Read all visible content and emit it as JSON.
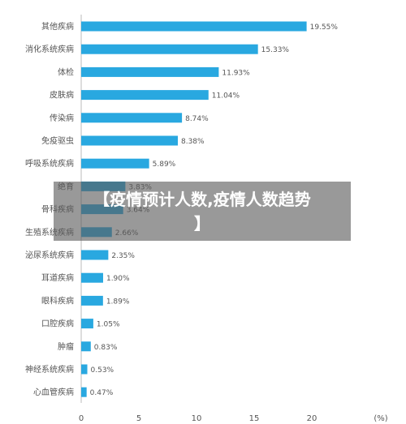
{
  "chart_data": {
    "type": "bar",
    "orientation": "horizontal",
    "categories": [
      "其他疾病",
      "消化系统疾病",
      "体检",
      "皮肤病",
      "传染病",
      "免疫驱虫",
      "呼吸系统疾病",
      "绝育",
      "骨科疾病",
      "生殖系统疾病",
      "泌尿系统疾病",
      "耳道疾病",
      "眼科疾病",
      "口腔疾病",
      "肿瘤",
      "神经系统疾病",
      "心血管疾病"
    ],
    "values": [
      19.55,
      15.33,
      11.93,
      11.04,
      8.74,
      8.38,
      5.89,
      3.83,
      3.64,
      2.66,
      2.35,
      1.9,
      1.89,
      1.05,
      0.83,
      0.53,
      0.47
    ],
    "value_labels": [
      "19.55%",
      "15.33%",
      "11.93%",
      "11.04%",
      "8.74%",
      "8.38%",
      "5.89%",
      "3.83%",
      "3.64%",
      "2.66%",
      "2.35%",
      "1.90%",
      "1.89%",
      "1.05%",
      "0.83%",
      "0.53%",
      "0.47%"
    ],
    "xticks": [
      "0",
      "5",
      "10",
      "15",
      "20"
    ],
    "xunit": "(%)",
    "xlim": [
      0,
      22.5
    ],
    "bar_color": "#29a8e0",
    "grid": false
  },
  "overlay": {
    "line1": "【疫情预计人数,疫情人数趋势",
    "line2": "】",
    "background": "#5a5a5a"
  }
}
